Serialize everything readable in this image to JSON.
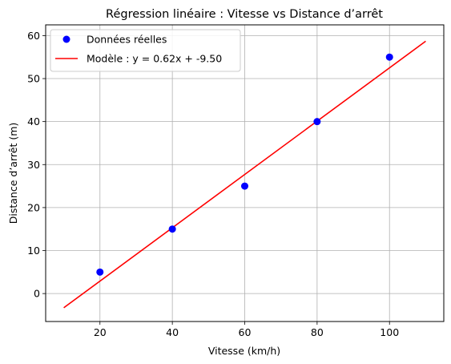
{
  "chart_data": {
    "type": "scatter",
    "title": "Régression linéaire : Vitesse vs Distance d’arrêt",
    "xlabel": "Vitesse (km/h)",
    "ylabel": "Distance d’arrêt (m)",
    "xlim": [
      5,
      115
    ],
    "ylim": [
      -6.5,
      62.5
    ],
    "xticks": [
      20,
      40,
      60,
      80,
      100
    ],
    "yticks": [
      0,
      10,
      20,
      30,
      40,
      50,
      60
    ],
    "grid": true,
    "legend_position": "top-left",
    "series": [
      {
        "name": "Données réelles",
        "kind": "scatter",
        "color": "#0000ff",
        "x": [
          20,
          40,
          60,
          80,
          100
        ],
        "y": [
          5,
          15,
          25,
          40,
          55
        ]
      },
      {
        "name": "Modèle : y = 0.62x + -9.50",
        "kind": "line",
        "color": "#ff0000",
        "x": [
          10,
          110
        ],
        "y": [
          -3.3,
          58.7
        ]
      }
    ]
  }
}
